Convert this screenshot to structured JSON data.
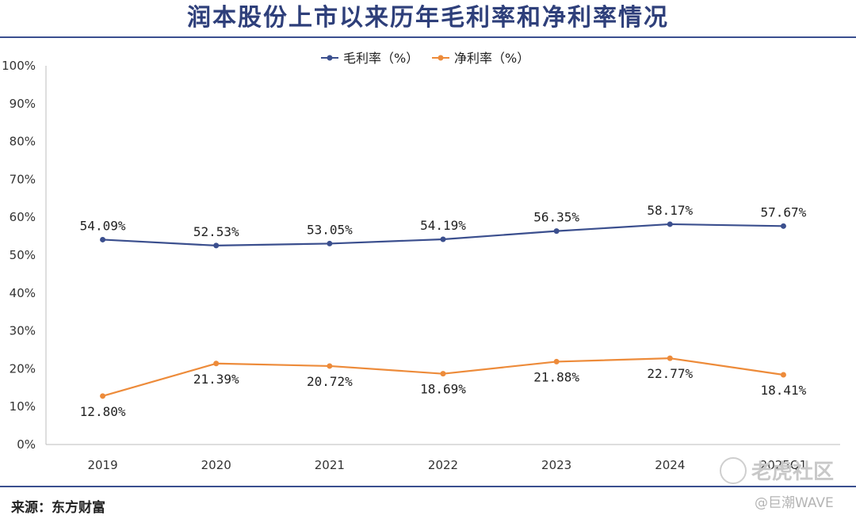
{
  "title": "润本股份上市以来历年毛利率和净利率情况",
  "source": "来源：东方财富",
  "watermark": {
    "brand": "老虎社区",
    "handle": "@巨潮WAVE"
  },
  "chart_data": {
    "type": "line",
    "categories": [
      "2019",
      "2020",
      "2021",
      "2022",
      "2023",
      "2024",
      "2025Q1"
    ],
    "series": [
      {
        "name": "毛利率（%）",
        "color": "#3b4f8e",
        "values": [
          54.09,
          52.53,
          53.05,
          54.19,
          56.35,
          58.17,
          57.67
        ],
        "labels": [
          "54.09%",
          "52.53%",
          "53.05%",
          "54.19%",
          "56.35%",
          "58.17%",
          "57.67%"
        ]
      },
      {
        "name": "净利率（%）",
        "color": "#ed8b3a",
        "values": [
          12.8,
          21.39,
          20.72,
          18.69,
          21.88,
          22.77,
          18.41
        ],
        "labels": [
          "12.80%",
          "21.39%",
          "20.72%",
          "18.69%",
          "21.88%",
          "22.77%",
          "18.41%"
        ]
      }
    ],
    "ylim": [
      0,
      100
    ],
    "yticks": [
      "0%",
      "10%",
      "20%",
      "30%",
      "40%",
      "50%",
      "60%",
      "70%",
      "80%",
      "90%",
      "100%"
    ],
    "legend_position": "top-center",
    "grid": false
  }
}
